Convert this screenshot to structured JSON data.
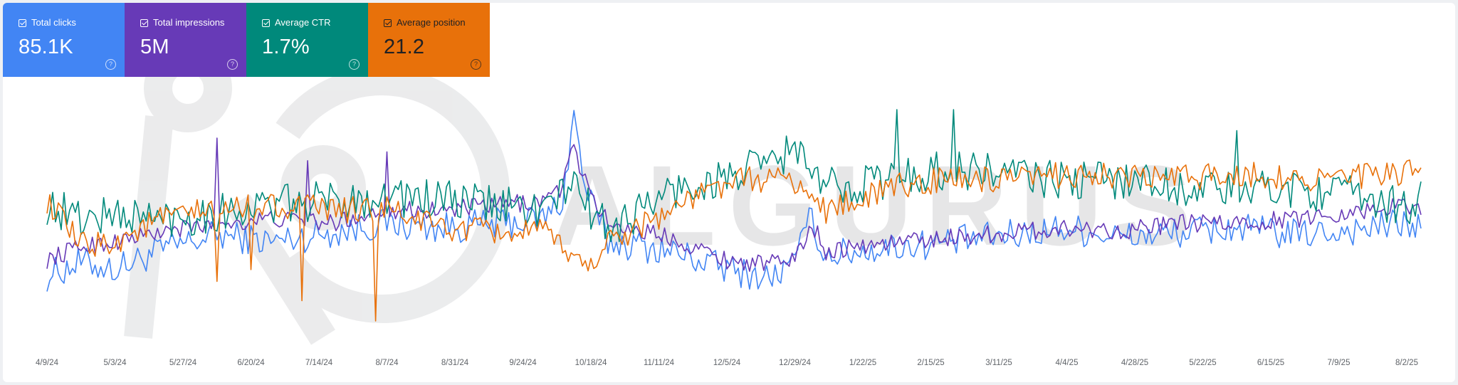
{
  "metrics": [
    {
      "label": "Total clicks",
      "value": "85.1K",
      "color": "#4285f4"
    },
    {
      "label": "Total impressions",
      "value": "5M",
      "color": "#673ab7"
    },
    {
      "label": "Average CTR",
      "value": "1.7%",
      "color": "#00897b"
    },
    {
      "label": "Average position",
      "value": "21.2",
      "color": "#e8710a"
    }
  ],
  "help_glyph": "?",
  "watermark": "ALGURUS",
  "chart_data": {
    "type": "line",
    "title": "",
    "xlabel": "",
    "ylabel": "",
    "grid": false,
    "legend": "none",
    "x_tick_labels": [
      "4/9/24",
      "5/3/24",
      "5/27/24",
      "6/20/24",
      "7/14/24",
      "8/7/24",
      "8/31/24",
      "9/24/24",
      "10/18/24",
      "11/11/24",
      "12/5/24",
      "12/29/24",
      "1/22/25",
      "2/15/25",
      "3/11/25",
      "4/4/25",
      "4/28/25",
      "5/22/25",
      "6/15/25",
      "7/9/25",
      "8/2/25"
    ],
    "ylim": [
      0,
      100
    ],
    "note_scale": "relative 0-100 per series (no y axis shown)",
    "series": [
      {
        "name": "Total clicks",
        "color": "#4285f4",
        "anchors": [
          [
            0,
            27
          ],
          [
            12,
            33
          ],
          [
            24,
            30
          ],
          [
            40,
            38
          ],
          [
            60,
            45
          ],
          [
            80,
            42
          ],
          [
            100,
            46
          ],
          [
            120,
            50
          ],
          [
            140,
            48
          ],
          [
            160,
            50
          ],
          [
            175,
            52
          ],
          [
            182,
            60
          ],
          [
            186,
            98
          ],
          [
            190,
            65
          ],
          [
            198,
            42
          ],
          [
            220,
            38
          ],
          [
            240,
            30
          ],
          [
            255,
            26
          ],
          [
            265,
            33
          ],
          [
            268,
            55
          ],
          [
            270,
            50
          ],
          [
            275,
            36
          ],
          [
            300,
            40
          ],
          [
            320,
            42
          ],
          [
            340,
            45
          ],
          [
            360,
            48
          ],
          [
            380,
            44
          ],
          [
            400,
            46
          ],
          [
            420,
            48
          ],
          [
            440,
            45
          ],
          [
            460,
            47
          ],
          [
            480,
            50
          ],
          [
            485,
            48
          ]
        ]
      },
      {
        "name": "Total impressions",
        "color": "#673ab7",
        "anchors": [
          [
            0,
            34
          ],
          [
            12,
            40
          ],
          [
            24,
            42
          ],
          [
            40,
            46
          ],
          [
            60,
            50
          ],
          [
            80,
            52
          ],
          [
            100,
            50
          ],
          [
            120,
            56
          ],
          [
            140,
            56
          ],
          [
            160,
            58
          ],
          [
            175,
            60
          ],
          [
            182,
            66
          ],
          [
            186,
            84
          ],
          [
            190,
            68
          ],
          [
            198,
            50
          ],
          [
            220,
            44
          ],
          [
            240,
            34
          ],
          [
            255,
            32
          ],
          [
            265,
            36
          ],
          [
            270,
            50
          ],
          [
            275,
            38
          ],
          [
            300,
            42
          ],
          [
            320,
            44
          ],
          [
            340,
            46
          ],
          [
            360,
            48
          ],
          [
            380,
            47
          ],
          [
            400,
            50
          ],
          [
            420,
            50
          ],
          [
            440,
            52
          ],
          [
            460,
            55
          ],
          [
            480,
            58
          ],
          [
            485,
            56
          ]
        ]
      },
      {
        "name": "Average CTR",
        "color": "#00897b",
        "anchors": [
          [
            0,
            58
          ],
          [
            12,
            52
          ],
          [
            24,
            54
          ],
          [
            40,
            52
          ],
          [
            60,
            55
          ],
          [
            80,
            58
          ],
          [
            100,
            60
          ],
          [
            120,
            62
          ],
          [
            140,
            60
          ],
          [
            160,
            58
          ],
          [
            175,
            56
          ],
          [
            182,
            62
          ],
          [
            186,
            72
          ],
          [
            190,
            58
          ],
          [
            198,
            48
          ],
          [
            210,
            56
          ],
          [
            220,
            64
          ],
          [
            240,
            70
          ],
          [
            255,
            76
          ],
          [
            265,
            84
          ],
          [
            270,
            70
          ],
          [
            275,
            66
          ],
          [
            300,
            70
          ],
          [
            320,
            74
          ],
          [
            340,
            72
          ],
          [
            360,
            68
          ],
          [
            380,
            70
          ],
          [
            400,
            66
          ],
          [
            420,
            64
          ],
          [
            440,
            66
          ],
          [
            460,
            62
          ],
          [
            480,
            58
          ],
          [
            485,
            60
          ]
        ]
      },
      {
        "name": "Average position",
        "color": "#e8710a",
        "anchors": [
          [
            0,
            60
          ],
          [
            12,
            40
          ],
          [
            24,
            42
          ],
          [
            40,
            52
          ],
          [
            60,
            56
          ],
          [
            80,
            58
          ],
          [
            100,
            56
          ],
          [
            120,
            56
          ],
          [
            140,
            48
          ],
          [
            160,
            46
          ],
          [
            175,
            46
          ],
          [
            182,
            40
          ],
          [
            186,
            36
          ],
          [
            190,
            30
          ],
          [
            198,
            42
          ],
          [
            220,
            56
          ],
          [
            240,
            68
          ],
          [
            255,
            70
          ],
          [
            265,
            68
          ],
          [
            270,
            60
          ],
          [
            275,
            56
          ],
          [
            300,
            66
          ],
          [
            320,
            70
          ],
          [
            340,
            68
          ],
          [
            360,
            72
          ],
          [
            380,
            70
          ],
          [
            400,
            70
          ],
          [
            420,
            72
          ],
          [
            440,
            70
          ],
          [
            460,
            70
          ],
          [
            480,
            72
          ],
          [
            485,
            72
          ]
        ]
      }
    ]
  }
}
